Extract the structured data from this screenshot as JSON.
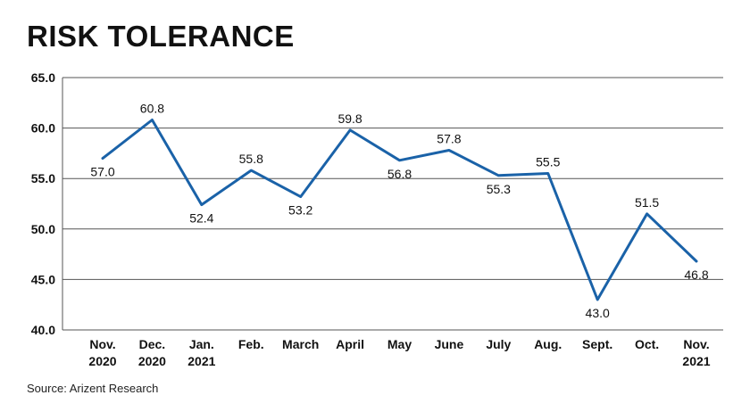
{
  "chart_data": {
    "type": "line",
    "title": "RISK TOLERANCE",
    "xlabel": "",
    "ylabel": "",
    "ylim": [
      40,
      65
    ],
    "yticks": [
      "40.0",
      "45.0",
      "50.0",
      "55.0",
      "60.0",
      "65.0"
    ],
    "grid": true,
    "line_color": "#1a62a8",
    "categories": [
      [
        "Nov.",
        "2020"
      ],
      [
        "Dec.",
        "2020"
      ],
      [
        "Jan.",
        "2021"
      ],
      [
        "Feb."
      ],
      [
        "March"
      ],
      [
        "April"
      ],
      [
        "May"
      ],
      [
        "June"
      ],
      [
        "July"
      ],
      [
        "Aug."
      ],
      [
        "Sept."
      ],
      [
        "Oct."
      ],
      [
        "Nov.",
        "2021"
      ]
    ],
    "values": [
      57.0,
      60.8,
      52.4,
      55.8,
      53.2,
      59.8,
      56.8,
      57.8,
      55.3,
      55.5,
      43.0,
      51.5,
      46.8
    ],
    "labels": [
      "57.0",
      "60.8",
      "52.4",
      "55.8",
      "53.2",
      "59.8",
      "56.8",
      "57.8",
      "55.3",
      "55.5",
      "43.0",
      "51.5",
      "46.8"
    ],
    "label_position": [
      "below",
      "above",
      "below",
      "above",
      "below",
      "above",
      "below",
      "above",
      "below",
      "above",
      "below",
      "above",
      "below"
    ]
  },
  "source": "Source: Arizent Research"
}
